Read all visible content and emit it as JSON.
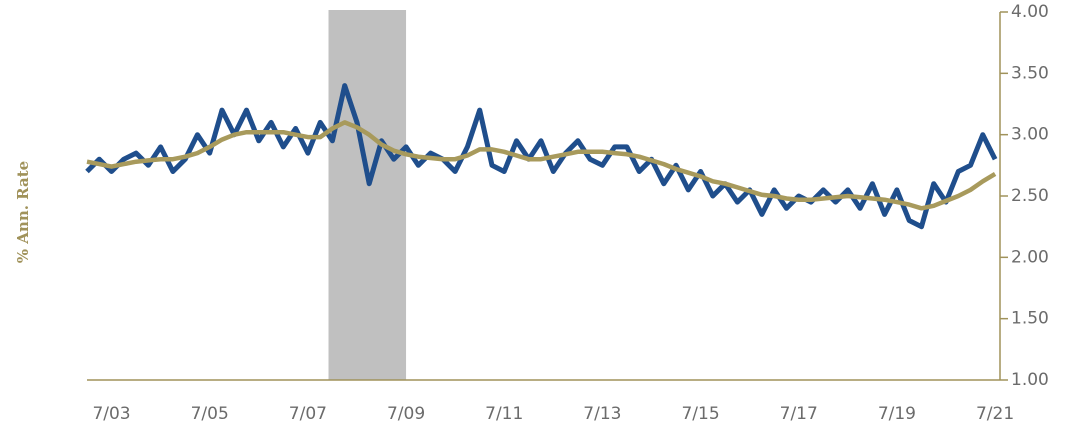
{
  "chart_data": {
    "type": "line",
    "y_axis_label": "% Ann. Rate",
    "x": [
      2003,
      2003.25,
      2003.5,
      2003.75,
      2004,
      2004.25,
      2004.5,
      2004.75,
      2005,
      2005.25,
      2005.5,
      2005.75,
      2006,
      2006.25,
      2006.5,
      2006.75,
      2007,
      2007.25,
      2007.5,
      2007.75,
      2008,
      2008.25,
      2008.5,
      2008.75,
      2009,
      2009.25,
      2009.5,
      2009.75,
      2010,
      2010.25,
      2010.5,
      2010.75,
      2011,
      2011.25,
      2011.5,
      2011.75,
      2012,
      2012.25,
      2012.5,
      2012.75,
      2013,
      2013.25,
      2013.5,
      2013.75,
      2014,
      2014.25,
      2014.5,
      2014.75,
      2015,
      2015.25,
      2015.5,
      2015.75,
      2016,
      2016.25,
      2016.5,
      2016.75,
      2017,
      2017.25,
      2017.5,
      2017.75,
      2018,
      2018.25,
      2018.5,
      2018.75,
      2019,
      2019.25,
      2019.5,
      2019.75,
      2020,
      2020.25,
      2020.5,
      2020.75,
      2021,
      2021.25,
      2021.5
    ],
    "series": [
      {
        "color": "#1f4e8c",
        "values": [
          2.7,
          2.8,
          2.7,
          2.8,
          2.85,
          2.75,
          2.9,
          2.7,
          2.8,
          3.0,
          2.85,
          3.2,
          3.0,
          3.2,
          2.95,
          3.1,
          2.9,
          3.05,
          2.85,
          3.1,
          2.95,
          3.4,
          3.1,
          2.6,
          2.95,
          2.8,
          2.9,
          2.75,
          2.85,
          2.8,
          2.7,
          2.9,
          3.2,
          2.75,
          2.7,
          2.95,
          2.8,
          2.95,
          2.7,
          2.85,
          2.95,
          2.8,
          2.75,
          2.9,
          2.9,
          2.7,
          2.8,
          2.6,
          2.75,
          2.55,
          2.7,
          2.5,
          2.6,
          2.45,
          2.55,
          2.35,
          2.55,
          2.4,
          2.5,
          2.45,
          2.55,
          2.45,
          2.55,
          2.4,
          2.6,
          2.35,
          2.55,
          2.3,
          2.25,
          2.6,
          2.45,
          2.7,
          2.75,
          3.0,
          2.8
        ]
      },
      {
        "color": "#a89a5c",
        "values": [
          2.78,
          2.76,
          2.74,
          2.76,
          2.78,
          2.79,
          2.8,
          2.8,
          2.82,
          2.85,
          2.9,
          2.96,
          3.0,
          3.02,
          3.02,
          3.02,
          3.02,
          3.0,
          2.98,
          2.98,
          3.05,
          3.1,
          3.06,
          3.0,
          2.92,
          2.87,
          2.84,
          2.82,
          2.81,
          2.8,
          2.8,
          2.83,
          2.88,
          2.88,
          2.86,
          2.83,
          2.8,
          2.8,
          2.82,
          2.84,
          2.86,
          2.86,
          2.86,
          2.85,
          2.84,
          2.82,
          2.79,
          2.76,
          2.72,
          2.69,
          2.66,
          2.62,
          2.6,
          2.57,
          2.54,
          2.51,
          2.5,
          2.48,
          2.47,
          2.47,
          2.48,
          2.49,
          2.5,
          2.49,
          2.48,
          2.47,
          2.45,
          2.43,
          2.4,
          2.42,
          2.46,
          2.5,
          2.55,
          2.62,
          2.68
        ]
      }
    ],
    "shaded_region": [
      2007.92,
      2009.5
    ],
    "xlim": [
      2003,
      2021.6
    ],
    "xticks": [
      {
        "value": 2003.5,
        "label": "7/03"
      },
      {
        "value": 2005.5,
        "label": "7/05"
      },
      {
        "value": 2007.5,
        "label": "7/07"
      },
      {
        "value": 2009.5,
        "label": "7/09"
      },
      {
        "value": 2011.5,
        "label": "7/11"
      },
      {
        "value": 2013.5,
        "label": "7/13"
      },
      {
        "value": 2015.5,
        "label": "7/15"
      },
      {
        "value": 2017.5,
        "label": "7/17"
      },
      {
        "value": 2019.5,
        "label": "7/19"
      },
      {
        "value": 2021.5,
        "label": "7/21"
      }
    ],
    "ylim": [
      1,
      4
    ],
    "yticks": [
      {
        "value": 1,
        "label": "1.00"
      },
      {
        "value": 1.5,
        "label": "1.50"
      },
      {
        "value": 2,
        "label": "2.00"
      },
      {
        "value": 2.5,
        "label": "2.50"
      },
      {
        "value": 3,
        "label": "3.00"
      },
      {
        "value": 3.5,
        "label": "3.50"
      },
      {
        "value": 4,
        "label": "4.00"
      }
    ],
    "axis_color": "#a0925a"
  }
}
